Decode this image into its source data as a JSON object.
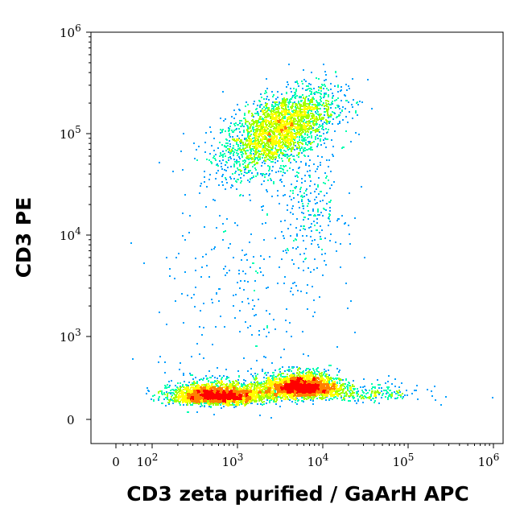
{
  "chart_data": {
    "type": "scatter",
    "title": "",
    "xlabel": "CD3 zeta purified / GaArH APC",
    "ylabel": "CD3 PE",
    "x_scale": "biexponential",
    "y_scale": "biexponential",
    "xlim": [
      -100,
      1000000
    ],
    "ylim": [
      -100,
      1000000
    ],
    "x_ticks": [
      {
        "value": 0,
        "label": "0",
        "exp": ""
      },
      {
        "value": 100,
        "label": "10",
        "exp": "2"
      },
      {
        "value": 1000,
        "label": "10",
        "exp": "3"
      },
      {
        "value": 10000,
        "label": "10",
        "exp": "4"
      },
      {
        "value": 100000,
        "label": "10",
        "exp": "5"
      },
      {
        "value": 1000000,
        "label": "10",
        "exp": "6"
      }
    ],
    "y_ticks": [
      {
        "value": 0,
        "label": "0",
        "exp": ""
      },
      {
        "value": 1000,
        "label": "10",
        "exp": "3"
      },
      {
        "value": 10000,
        "label": "10",
        "exp": "4"
      },
      {
        "value": 100000,
        "label": "10",
        "exp": "5"
      },
      {
        "value": 1000000,
        "label": "10",
        "exp": "6"
      }
    ],
    "colormap": [
      "#0000ff",
      "#00a0ff",
      "#00ffb0",
      "#a0ff00",
      "#ffff00",
      "#ff8000",
      "#ff0000"
    ],
    "populations": [
      {
        "x_center": 3000,
        "y_center": 110000,
        "x_spread_decades": 0.33,
        "y_spread_decades": 0.17,
        "density": "high"
      },
      {
        "x_center": 600,
        "y_center": 300,
        "x_spread_decades": 0.28,
        "y_spread_decades": 0.09,
        "density": "high"
      },
      {
        "x_center": 5500,
        "y_center": 400,
        "x_spread_decades": 0.22,
        "y_spread_decades": 0.08,
        "density": "high"
      },
      {
        "x_center": 1200,
        "y_center": 2500,
        "x_spread_decades": 0.5,
        "y_spread_decades": 0.6,
        "density": "sparse"
      },
      {
        "x_center": 7000,
        "y_center": 20000,
        "x_spread_decades": 0.2,
        "y_spread_decades": 0.3,
        "density": "sparse"
      },
      {
        "x_center": 30000,
        "y_center": 320,
        "x_spread_decades": 0.35,
        "y_spread_decades": 0.08,
        "density": "sparse"
      }
    ]
  }
}
